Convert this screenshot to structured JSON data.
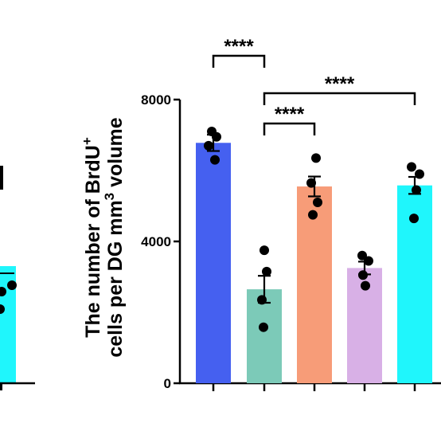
{
  "chart_data": {
    "type": "bar",
    "ylabel": {
      "line1": "The number of BrdU",
      "line1_sup": "+",
      "line2_pre": "cells per DG mm",
      "line2_sup": "3",
      "line2_post": " volume"
    },
    "ylim": [
      0,
      8000
    ],
    "yticks": [
      0,
      4000,
      8000
    ],
    "bars": [
      {
        "value": 6780,
        "sem": 230,
        "color": "#4560f0",
        "points": [
          7100,
          6950,
          6700,
          6300
        ]
      },
      {
        "value": 2650,
        "sem": 380,
        "color": "#7ccab8",
        "points": [
          3750,
          3150,
          2350,
          1580
        ]
      },
      {
        "value": 5550,
        "sem": 280,
        "color": "#f79c78",
        "points": [
          6350,
          5650,
          5100,
          4750
        ]
      },
      {
        "value": 3250,
        "sem": 180,
        "color": "#d8b0e6",
        "points": [
          3600,
          3450,
          3050,
          2750
        ]
      },
      {
        "value": 5580,
        "sem": 240,
        "color": "#1ff6fc",
        "points": [
          6100,
          5900,
          5450,
          4650
        ]
      }
    ],
    "significance": [
      {
        "from": 0,
        "to": 1,
        "label": "****"
      },
      {
        "from": 1,
        "to": 4,
        "label": "****"
      },
      {
        "from": 1,
        "to": 2,
        "label": "****"
      }
    ],
    "left_panel_fragment": {
      "bar_color": "#1ff6fc",
      "point_color": "#000000"
    }
  }
}
